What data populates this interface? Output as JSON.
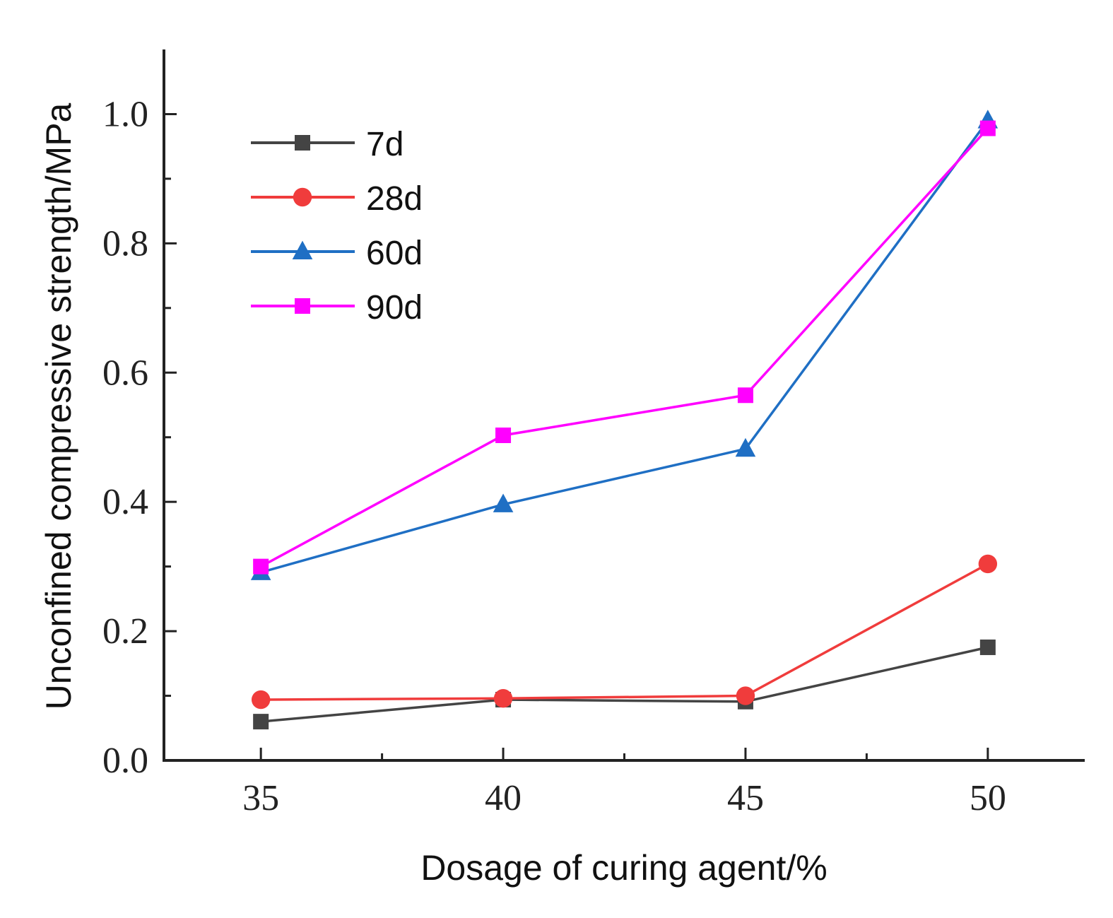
{
  "chart_data": {
    "type": "line",
    "title": "",
    "xlabel": "Dosage of curing agent/%",
    "ylabel": "Unconfined compressive strength/MPa",
    "x": [
      35,
      40,
      45,
      50
    ],
    "xlim": [
      33,
      52
    ],
    "ylim": [
      0,
      1.1
    ],
    "xticks": [
      "35",
      "40",
      "45",
      "50"
    ],
    "yticks": [
      "0.0",
      "0.2",
      "0.4",
      "0.6",
      "0.8",
      "1.0"
    ],
    "grid": false,
    "legend_position": "top-left",
    "series": [
      {
        "name": "7d",
        "values": [
          0.06,
          0.094,
          0.091,
          0.175
        ],
        "color": "#444444",
        "marker": "square"
      },
      {
        "name": "28d",
        "values": [
          0.094,
          0.096,
          0.1,
          0.304
        ],
        "color": "#f03c3c",
        "marker": "circle"
      },
      {
        "name": "60d",
        "values": [
          0.291,
          0.396,
          0.482,
          0.99
        ],
        "color": "#1f6fc4",
        "marker": "triangle"
      },
      {
        "name": "90d",
        "values": [
          0.3,
          0.503,
          0.565,
          0.978
        ],
        "color": "#ff00ff",
        "marker": "square"
      }
    ]
  }
}
